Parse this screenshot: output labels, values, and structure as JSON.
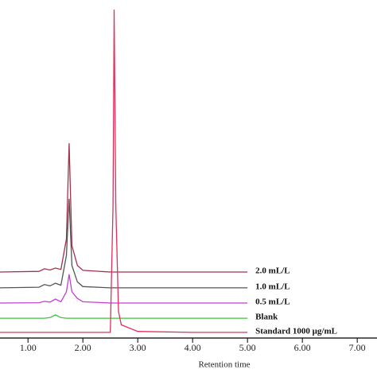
{
  "chart_data": {
    "type": "line",
    "x_label": "Retention time",
    "x": [
      0.49,
      1.2,
      1.3,
      1.4,
      1.5,
      1.6,
      1.7,
      1.75,
      1.8,
      1.9,
      2.0,
      2.5,
      2.55,
      2.57,
      2.6,
      2.65,
      2.7,
      3.0,
      4.0,
      5.0
    ],
    "series": [
      {
        "name": "2.0 mL/L",
        "color": "#a3304c",
        "values": [
          20.0,
          20.2,
          21.0,
          20.6,
          21.2,
          20.8,
          30,
          59.0,
          28,
          22,
          20.5,
          20.0,
          20.0,
          20.0,
          20.0,
          20.0,
          20.0,
          20.0,
          20.0,
          20.0
        ]
      },
      {
        "name": "1.0 mL/L",
        "color": "#555555",
        "values": [
          15.2,
          15.4,
          16.2,
          15.8,
          16.6,
          16.0,
          25,
          42.2,
          22,
          17,
          15.6,
          15.2,
          15.2,
          15.2,
          15.2,
          15.2,
          15.2,
          15.2,
          15.2,
          15.2
        ]
      },
      {
        "name": "0.5 mL/L",
        "color": "#c23fd3",
        "values": [
          10.6,
          10.7,
          11.1,
          10.9,
          11.8,
          11.0,
          14,
          19.3,
          14,
          12,
          11.0,
          10.6,
          10.6,
          10.6,
          10.6,
          10.6,
          10.6,
          10.6,
          10.6,
          10.6
        ]
      },
      {
        "name": "Blank",
        "color": "#3fc23f",
        "values": [
          6.0,
          6.0,
          6.0,
          6.2,
          7.0,
          6.2,
          6.0,
          6.0,
          6.0,
          6.0,
          6.0,
          6.0,
          6.0,
          6.0,
          6.0,
          6.0,
          6.0,
          6.0,
          6.0,
          6.0
        ]
      },
      {
        "name": "Standard 1000 μg/mL",
        "color": "#e0305a",
        "values": [
          1.7,
          1.7,
          1.7,
          1.7,
          1.7,
          1.7,
          1.7,
          1.7,
          1.7,
          1.7,
          1.7,
          1.7,
          40,
          99.5,
          40,
          8,
          4,
          2.0,
          1.7,
          1.7
        ]
      }
    ],
    "xlim": [
      0.49,
      7.36
    ],
    "ylim": [
      0,
      100
    ],
    "xticks": [
      {
        "value": 1,
        "label": "1.00"
      },
      {
        "value": 2,
        "label": "2.00"
      },
      {
        "value": 3,
        "label": "3.00"
      },
      {
        "value": 4,
        "label": "4.00"
      },
      {
        "value": 5,
        "label": "5.00"
      },
      {
        "value": 6,
        "label": "6.00"
      },
      {
        "value": 7,
        "label": "7.00"
      }
    ]
  }
}
